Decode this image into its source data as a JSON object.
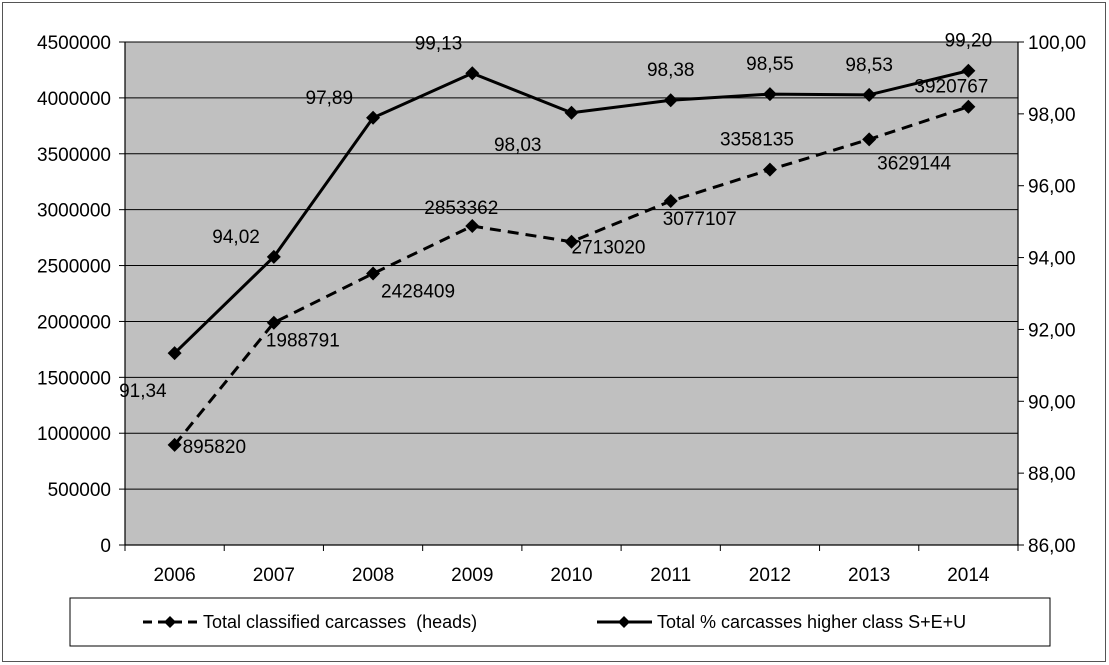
{
  "chart_data": {
    "type": "line",
    "title": "",
    "xlabel": "",
    "ylabel": "",
    "categories": [
      "2006",
      "2007",
      "2008",
      "2009",
      "2010",
      "2011",
      "2012",
      "2013",
      "2014"
    ],
    "y_left": {
      "min": 0,
      "max": 4500000,
      "step": 500000,
      "tick_labels": [
        "0",
        "500000",
        "1000000",
        "1500000",
        "2000000",
        "2500000",
        "3000000",
        "3500000",
        "4000000",
        "4500000"
      ]
    },
    "y_right": {
      "min": 86,
      "max": 100,
      "step": 2,
      "tick_labels": [
        "86,00",
        "88,00",
        "90,00",
        "92,00",
        "94,00",
        "96,00",
        "98,00",
        "100,00"
      ]
    },
    "series": [
      {
        "name": "Total classified carcasses  (heads)",
        "axis": "left",
        "style": "dashed",
        "marker": "diamond",
        "values": [
          895820,
          1988791,
          2428409,
          2853362,
          2713020,
          3077107,
          3358135,
          3629144,
          3920767
        ],
        "labels": [
          "895820",
          "1988791",
          "2428409",
          "2853362",
          "2713020",
          "3077107",
          "3358135",
          "3629144",
          "3920767"
        ]
      },
      {
        "name": "Total % carcasses higher class S+E+U",
        "axis": "right",
        "style": "solid",
        "marker": "diamond",
        "values": [
          91.34,
          94.02,
          97.89,
          99.13,
          98.03,
          98.38,
          98.55,
          98.53,
          99.2
        ],
        "labels": [
          "91,34",
          "94,02",
          "97,89",
          "99,13",
          "98,03",
          "98,38",
          "98,55",
          "98,53",
          "99,20"
        ]
      }
    ],
    "grid": true,
    "plot_background": "#c0c0c0",
    "line_color": "#000000",
    "legend_position": "bottom"
  }
}
